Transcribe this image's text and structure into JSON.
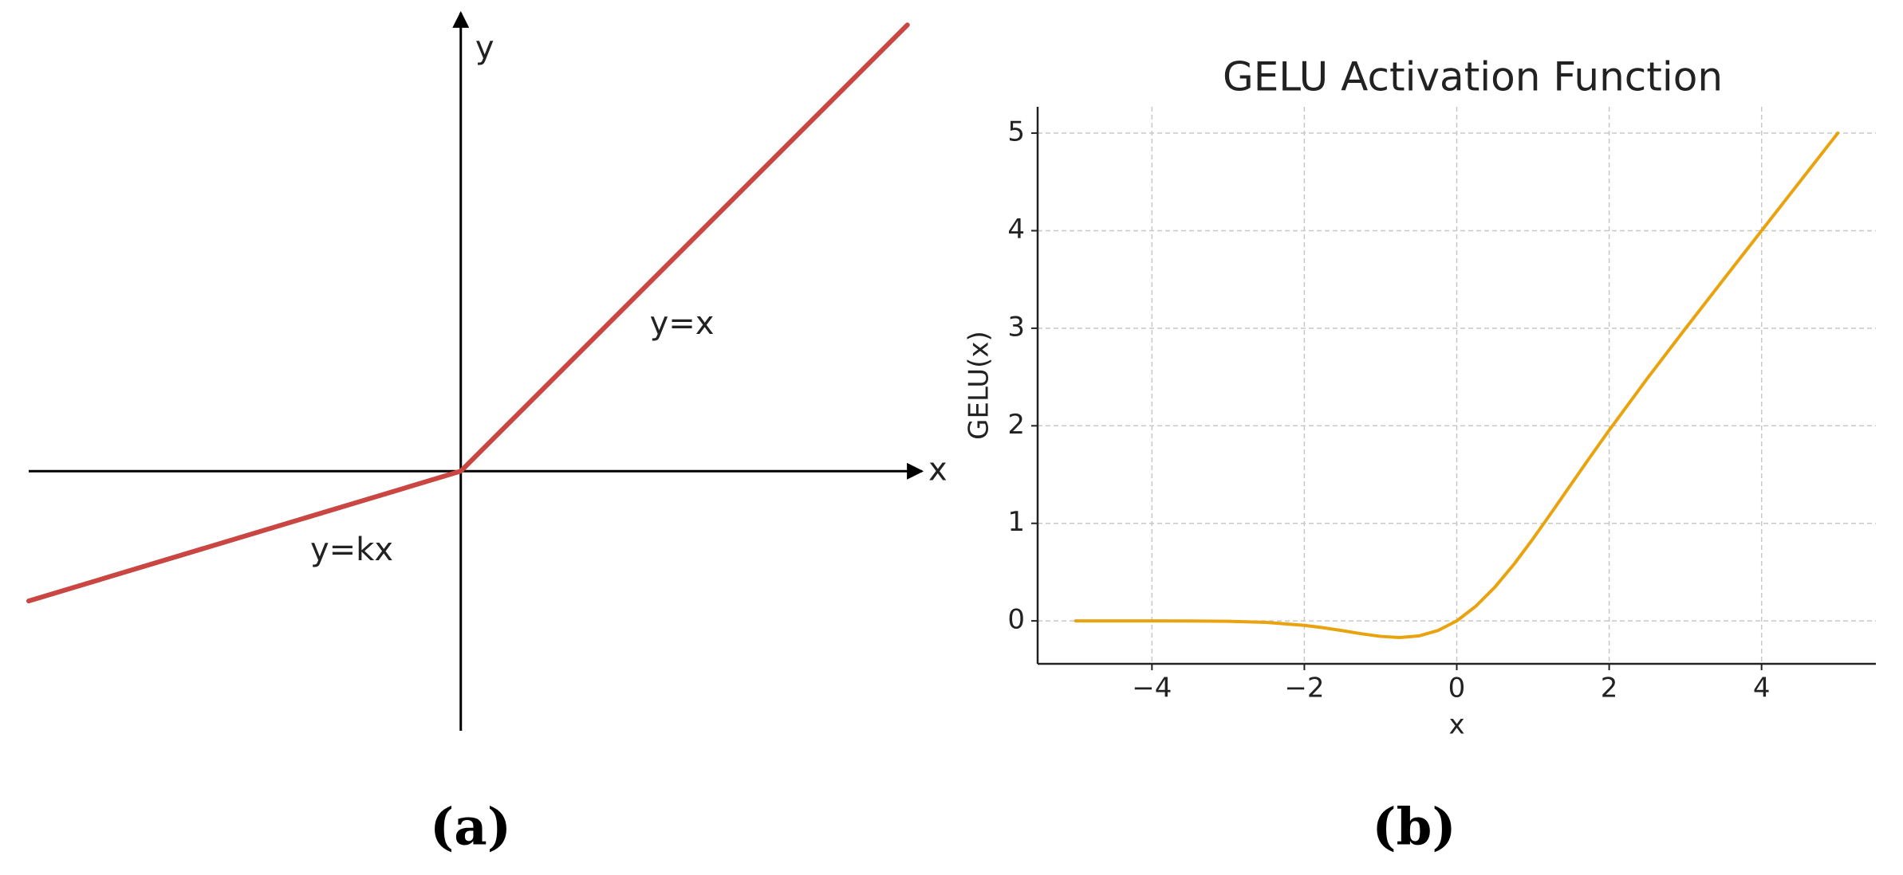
{
  "chart_data": [
    {
      "type": "line",
      "caption": "(a)",
      "x_label": "x",
      "y_label": "y",
      "annotations": [
        "y=x",
        "y=kx"
      ],
      "xlim": [
        -3.56,
        3.8
      ],
      "ylim": [
        -2.14,
        3.78
      ],
      "series": [
        {
          "color": "#c94643",
          "x": [
            -3.56,
            0,
            3.68
          ],
          "values": [
            -1.07,
            0,
            3.68
          ]
        }
      ]
    },
    {
      "type": "line",
      "caption": "(b)",
      "title": "GELU Activation Function",
      "x_label": "x",
      "y_label": "GELU(x)",
      "xlim": [
        -5.5,
        5.5
      ],
      "ylim": [
        -0.44,
        5.27
      ],
      "xticks": [
        {
          "value": -4,
          "label": "−4"
        },
        {
          "value": -2,
          "label": "−2"
        },
        0,
        2,
        4
      ],
      "yticks": [
        0,
        1,
        2,
        3,
        4,
        5
      ],
      "grid": true,
      "series": [
        {
          "color": "#e8a30e",
          "x": [
            -5,
            -4.5,
            -4,
            -3.5,
            -3,
            -2.5,
            -2,
            -1.75,
            -1.5,
            -1.25,
            -1,
            -0.75,
            -0.5,
            -0.25,
            0,
            0.25,
            0.5,
            0.75,
            1,
            1.25,
            1.5,
            1.75,
            2,
            2.5,
            3,
            3.5,
            4,
            4.5,
            5
          ],
          "values": [
            0,
            0,
            -0.0001,
            -0.0008,
            -0.004,
            -0.0155,
            -0.0455,
            -0.0702,
            -0.1002,
            -0.132,
            -0.1587,
            -0.17,
            -0.1543,
            -0.0998,
            0,
            0.1502,
            0.3457,
            0.58,
            0.8413,
            1.118,
            1.3998,
            1.6798,
            1.9545,
            2.4845,
            2.996,
            3.4992,
            3.9999,
            4.5,
            5
          ]
        }
      ]
    }
  ]
}
